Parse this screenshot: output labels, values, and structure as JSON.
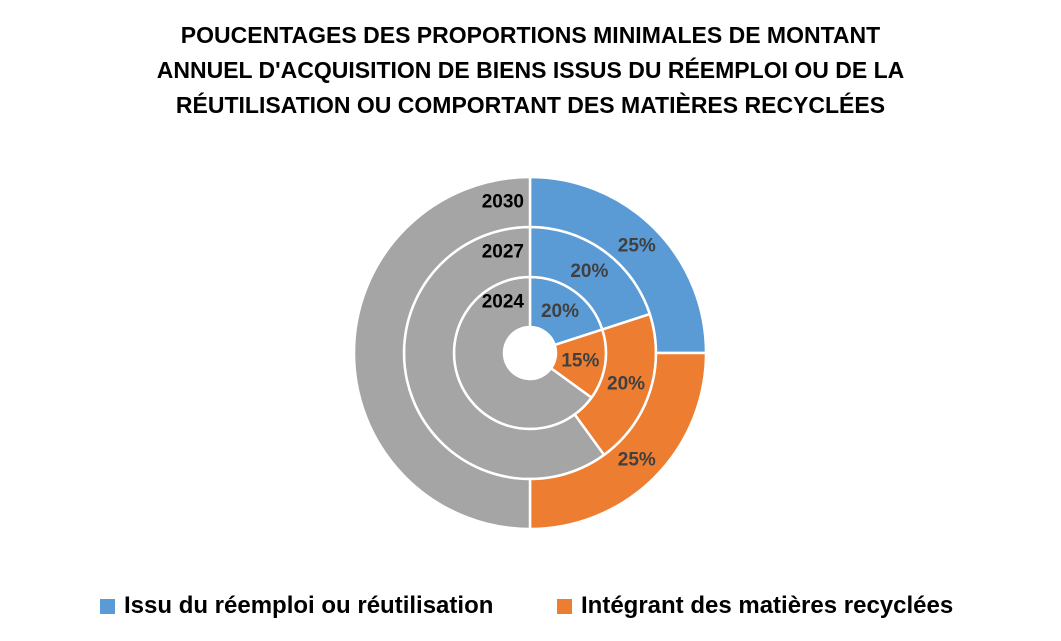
{
  "chart_data": {
    "type": "doughnut",
    "title_lines": [
      "POUCENTAGES DES PROPORTIONS MINIMALES DE MONTANT",
      "ANNUEL D'ACQUISITION DE BIENS ISSUS DU RÉEMPLOI OU DE LA",
      "RÉUTILISATION OU COMPORTANT DES MATIÈRES RECYCLÉES"
    ],
    "rings": [
      {
        "name": "2024",
        "values": [
          20,
          15,
          65
        ],
        "labels": [
          "20%",
          "15%",
          ""
        ]
      },
      {
        "name": "2027",
        "values": [
          20,
          20,
          60
        ],
        "labels": [
          "20%",
          "20%",
          ""
        ]
      },
      {
        "name": "2030",
        "values": [
          25,
          25,
          50
        ],
        "labels": [
          "25%",
          "25%",
          ""
        ]
      }
    ],
    "series": [
      {
        "name": "Issu du réemploi ou réutilisation",
        "color": "#5B9BD5"
      },
      {
        "name": "Intégrant des matières recyclées",
        "color": "#ED7D31"
      },
      {
        "name": "",
        "color": "#A5A5A5"
      }
    ],
    "legend": {
      "position": "bottom",
      "items": [
        {
          "label": "Issu du réemploi ou réutilisation",
          "color": "#5B9BD5"
        },
        {
          "label": "Intégrant des matières recyclées",
          "color": "#ED7D31"
        }
      ]
    }
  }
}
